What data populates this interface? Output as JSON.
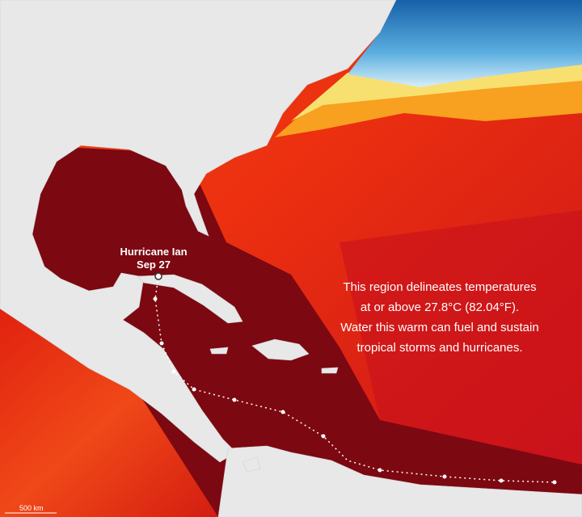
{
  "storm_label": {
    "name": "Hurricane Ian",
    "date": "Sep 27"
  },
  "annotation": {
    "lines": [
      "This region delineates temperatures",
      "at or above 27.8°C (82.04°F).",
      "Water this warm can fuel and sustain",
      "tropical storms and hurricanes."
    ]
  },
  "scale_bar": {
    "label": "500 km"
  }
}
